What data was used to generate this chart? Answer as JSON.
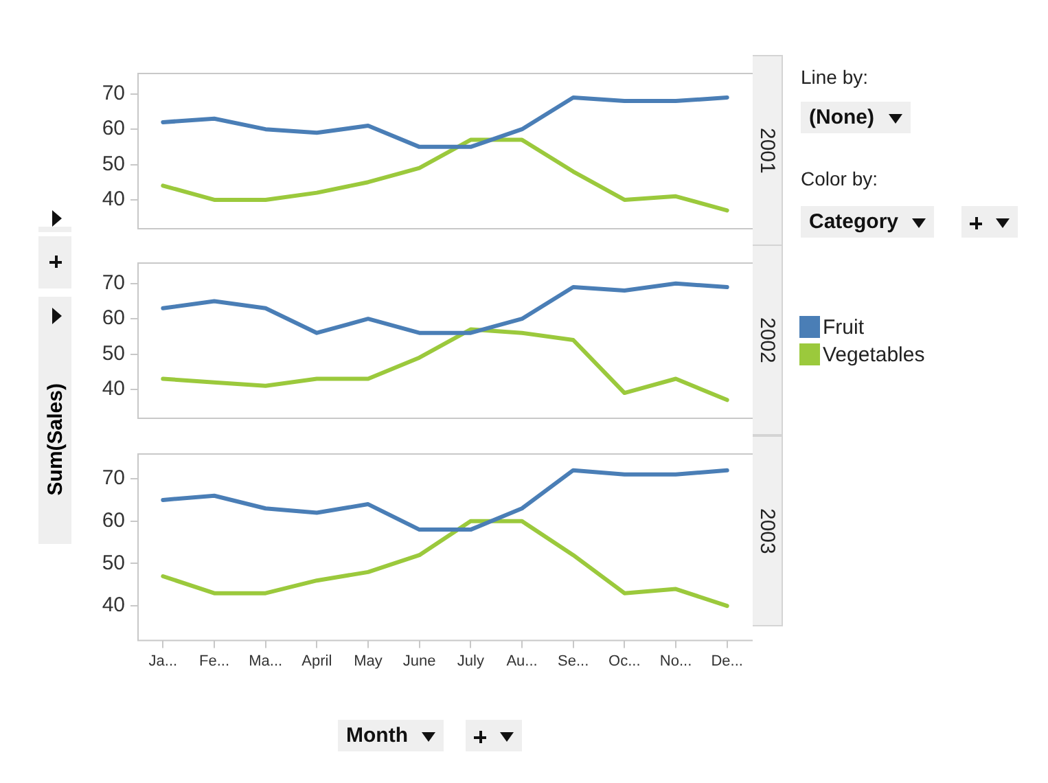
{
  "chart_data": [
    {
      "type": "line",
      "title": "2001",
      "categories": [
        null,
        null,
        null,
        null,
        null,
        null,
        null,
        null,
        null,
        null,
        null,
        null
      ],
      "ylim": [
        32,
        76
      ],
      "yticks": [
        40,
        50,
        60,
        70
      ],
      "tick_labels": "y",
      "legend": "right",
      "annotations": [
        "Line by:",
        "(None)",
        "Color by:",
        "Category"
      ],
      "series": [
        {
          "name": "Fruit",
          "color": "#4a7eb6",
          "values": [
            62,
            63,
            60,
            59,
            61,
            55,
            55,
            60,
            69,
            68,
            68,
            69
          ]
        },
        {
          "name": "Vegetables",
          "color": "#9bc93c",
          "values": [
            44,
            40,
            40,
            42,
            45,
            49,
            57,
            57,
            48,
            40,
            41,
            37
          ]
        }
      ]
    },
    {
      "type": "line",
      "title": "2002",
      "categories": [
        null,
        null,
        null,
        null,
        null,
        null,
        null,
        null,
        null,
        null,
        null,
        null
      ],
      "ylim": [
        32,
        76
      ],
      "yticks": [
        40,
        50,
        60,
        70
      ],
      "tick_labels": "y",
      "ylabel": "Sum(Sales)",
      "series": [
        {
          "color": "#4a7eb6",
          "values": [
            63,
            65,
            63,
            56,
            60,
            56,
            56,
            60,
            69,
            68,
            70,
            69
          ]
        },
        {
          "color": "#9bc93c",
          "values": [
            43,
            42,
            41,
            43,
            43,
            49,
            57,
            56,
            54,
            39,
            43,
            37
          ]
        }
      ]
    },
    {
      "type": "line",
      "title": "2003",
      "categories": [
        "Ja...",
        "Fe...",
        "Ma...",
        "April",
        "May",
        "June",
        "July",
        "Au...",
        "Se...",
        "Oc...",
        "No...",
        "De..."
      ],
      "ylim": [
        32,
        76
      ],
      "yticks": [
        40,
        50,
        60,
        70
      ],
      "xlabel": "Month",
      "series": [
        {
          "color": "#4a7eb6",
          "values": [
            65,
            66,
            63,
            62,
            64,
            58,
            58,
            63,
            72,
            71,
            71,
            72
          ]
        },
        {
          "color": "#9bc93c",
          "values": [
            47,
            43,
            43,
            46,
            48,
            52,
            60,
            60,
            52,
            43,
            44,
            40
          ]
        }
      ]
    }
  ]
}
